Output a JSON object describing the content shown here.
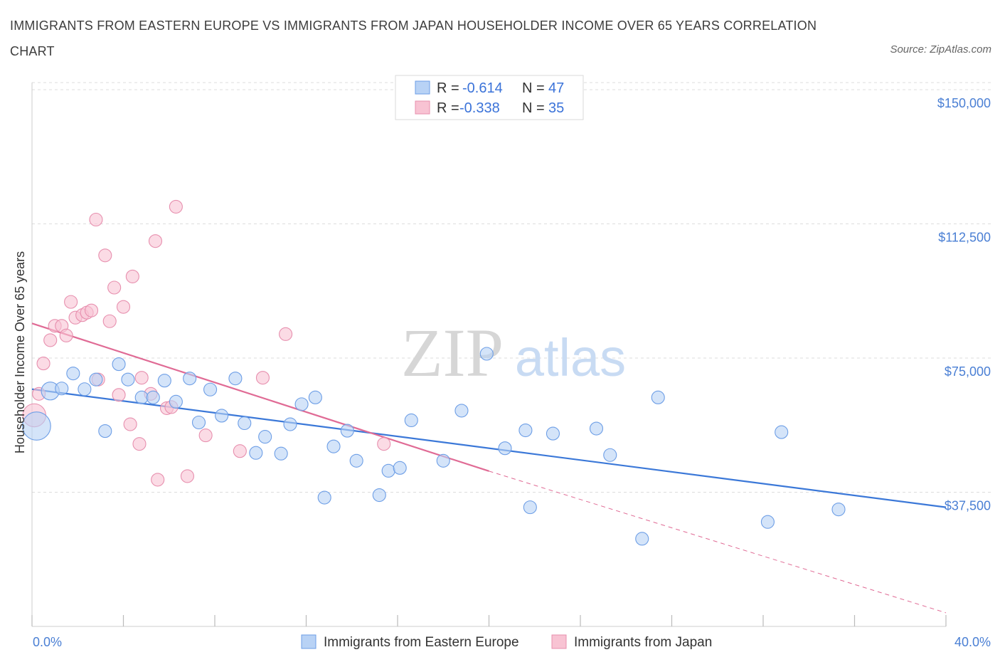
{
  "title": "IMMIGRANTS FROM EASTERN EUROPE VS IMMIGRANTS FROM JAPAN HOUSEHOLDER INCOME OVER 65 YEARS CORRELATION CHART",
  "source": "Source: ZipAtlas.com",
  "colors": {
    "blue": "#3b78d8",
    "blue_fill": "#b8d2f5",
    "pink": "#e06b95",
    "pink_fill": "#f8c3d3",
    "grid": "#dddddd",
    "axis_text": "#4a7fd4"
  },
  "legend": {
    "rows": [
      {
        "r_label": "R =",
        "r_value": "-0.614",
        "n_label": "N =",
        "n_value": "47"
      },
      {
        "r_label": "R =",
        "r_value": "-0.338",
        "n_label": "N =",
        "n_value": "35"
      }
    ]
  },
  "watermark": {
    "zip": "ZIP",
    "atlas": "atlas"
  },
  "chart_data": {
    "type": "scatter",
    "title": "IMMIGRANTS FROM EASTERN EUROPE VS IMMIGRANTS FROM JAPAN HOUSEHOLDER INCOME OVER 65 YEARS CORRELATION CHART",
    "xlabel": "",
    "ylabel": "Householder Income Over 65 years",
    "xlim": [
      0,
      40
    ],
    "ylim": [
      0,
      152000
    ],
    "x_tick_labels": [
      "0.0%",
      "40.0%"
    ],
    "y_ticks": [
      37500,
      75000,
      112500,
      150000
    ],
    "y_tick_labels": [
      "$37,500",
      "$75,000",
      "$112,500",
      "$150,000"
    ],
    "grid": true,
    "legend_position": "top-center",
    "series": [
      {
        "name": "Immigrants from Eastern Europe",
        "color": "#3b78d8",
        "trend": {
          "x": [
            0,
            40
          ],
          "y": [
            66300,
            33300
          ],
          "dashed_from": null
        },
        "points": [
          [
            0.2,
            56000,
            2.2
          ],
          [
            0.8,
            65800,
            1.4
          ],
          [
            1.3,
            66500,
            1.0
          ],
          [
            1.8,
            70700,
            1
          ],
          [
            2.3,
            66300,
            1
          ],
          [
            2.8,
            69000,
            1
          ],
          [
            3.2,
            54600,
            1
          ],
          [
            3.8,
            73300,
            1
          ],
          [
            4.2,
            69000,
            1
          ],
          [
            4.8,
            64000,
            1
          ],
          [
            5.3,
            64000,
            1
          ],
          [
            5.8,
            68700,
            1
          ],
          [
            6.3,
            62800,
            1
          ],
          [
            6.9,
            69300,
            1
          ],
          [
            7.3,
            57000,
            1
          ],
          [
            7.8,
            66200,
            1
          ],
          [
            8.3,
            58900,
            1
          ],
          [
            8.9,
            69300,
            1
          ],
          [
            9.3,
            56800,
            1
          ],
          [
            9.8,
            48500,
            1
          ],
          [
            10.2,
            53000,
            1
          ],
          [
            10.9,
            48300,
            1
          ],
          [
            11.3,
            56500,
            1
          ],
          [
            11.8,
            62100,
            1
          ],
          [
            12.4,
            64000,
            1
          ],
          [
            12.8,
            36000,
            1
          ],
          [
            13.2,
            50300,
            1
          ],
          [
            13.8,
            54700,
            1
          ],
          [
            14.2,
            46300,
            1
          ],
          [
            15.2,
            36700,
            1
          ],
          [
            15.6,
            43500,
            1
          ],
          [
            16.1,
            44300,
            1
          ],
          [
            16.6,
            57600,
            1
          ],
          [
            18.0,
            46300,
            1
          ],
          [
            18.8,
            60300,
            1
          ],
          [
            19.9,
            76200,
            1
          ],
          [
            20.7,
            49800,
            1
          ],
          [
            21.6,
            54800,
            1
          ],
          [
            21.8,
            33300,
            1
          ],
          [
            22.8,
            53900,
            1
          ],
          [
            24.7,
            55300,
            1
          ],
          [
            25.3,
            47900,
            1
          ],
          [
            26.7,
            24500,
            1
          ],
          [
            27.4,
            64000,
            1
          ],
          [
            32.2,
            29200,
            1
          ],
          [
            32.8,
            54300,
            1
          ],
          [
            35.3,
            32700,
            1
          ]
        ]
      },
      {
        "name": "Immigrants from Japan",
        "color": "#e06b95",
        "trend": {
          "x": [
            0,
            20,
            40
          ],
          "y": [
            84700,
            43400,
            3800
          ],
          "dashed_from": 20
        },
        "points": [
          [
            0.1,
            59000,
            1.8
          ],
          [
            0.3,
            65000,
            1
          ],
          [
            0.5,
            73500,
            1
          ],
          [
            0.8,
            80000,
            1
          ],
          [
            1.0,
            84000,
            1
          ],
          [
            1.3,
            84000,
            1
          ],
          [
            1.5,
            81300,
            1
          ],
          [
            1.7,
            90700,
            1
          ],
          [
            1.9,
            86300,
            1
          ],
          [
            2.2,
            87000,
            1
          ],
          [
            2.4,
            87700,
            1
          ],
          [
            2.6,
            88300,
            1
          ],
          [
            2.9,
            69000,
            1
          ],
          [
            2.8,
            113700,
            1
          ],
          [
            3.2,
            103700,
            1
          ],
          [
            3.4,
            85300,
            1
          ],
          [
            3.6,
            94700,
            1
          ],
          [
            3.8,
            64700,
            1
          ],
          [
            4.0,
            89300,
            1
          ],
          [
            4.3,
            56500,
            1
          ],
          [
            4.4,
            97800,
            1
          ],
          [
            4.7,
            51000,
            1
          ],
          [
            4.8,
            69500,
            1
          ],
          [
            5.2,
            65000,
            1
          ],
          [
            5.4,
            107700,
            1
          ],
          [
            5.5,
            41000,
            1
          ],
          [
            5.9,
            61000,
            1
          ],
          [
            6.1,
            61300,
            1
          ],
          [
            6.3,
            117300,
            1
          ],
          [
            6.8,
            42000,
            1
          ],
          [
            7.6,
            53400,
            1
          ],
          [
            9.1,
            49000,
            1
          ],
          [
            10.1,
            69500,
            1
          ],
          [
            11.1,
            81700,
            1
          ],
          [
            15.4,
            51000,
            1
          ]
        ]
      }
    ]
  }
}
